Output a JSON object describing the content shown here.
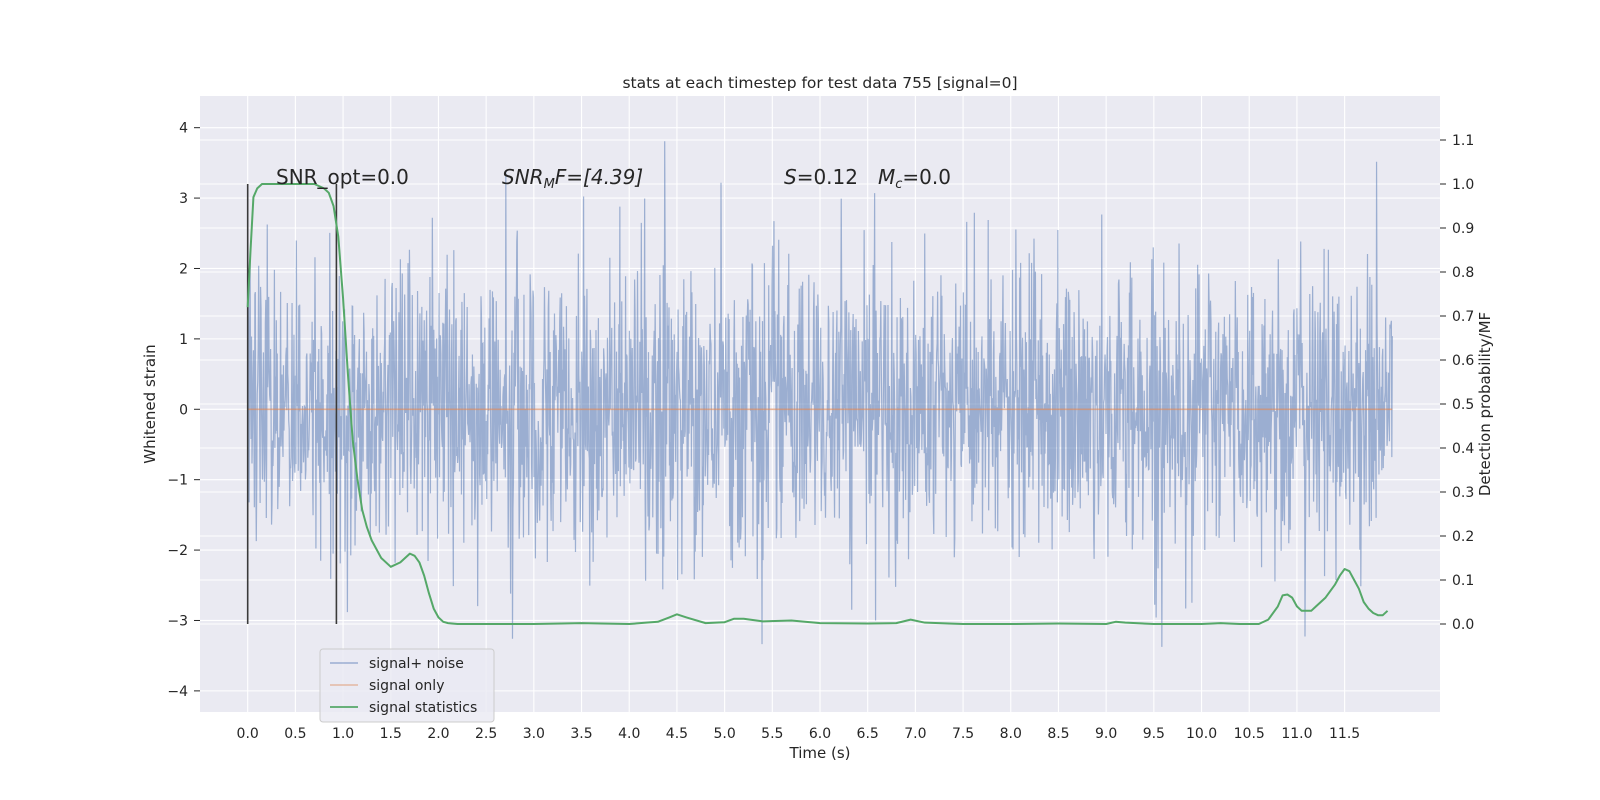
{
  "chart_data": {
    "type": "line",
    "title": "stats at each timestep for test data 755 [signal=0]",
    "xlabel": "Time (s)",
    "ylabel_left": "Whitened strain",
    "ylabel_right": "Detection probability/MF",
    "xlim": [
      -0.5,
      12.5
    ],
    "ylim_left": [
      -4.3,
      4.45
    ],
    "ylim_right": [
      -0.2,
      1.2
    ],
    "xticks": [
      "0.0",
      "0.5",
      "1.0",
      "1.5",
      "2.0",
      "2.5",
      "3.0",
      "3.5",
      "4.0",
      "4.5",
      "5.0",
      "5.5",
      "6.0",
      "6.5",
      "7.0",
      "7.5",
      "8.0",
      "8.5",
      "9.0",
      "9.5",
      "10.0",
      "10.5",
      "11.0",
      "11.5"
    ],
    "yticks_left": [
      "4",
      "3",
      "2",
      "1",
      "0",
      "−1",
      "−2",
      "−3",
      "−4"
    ],
    "yticks_right": [
      "1.1",
      "1.0",
      "0.9",
      "0.8",
      "0.7",
      "0.6",
      "0.5",
      "0.4",
      "0.3",
      "0.2",
      "0.1",
      "0.0"
    ],
    "grid": true,
    "legend_position": "lower-left",
    "annotations": {
      "snr_opt": "SNR_opt=0.0",
      "snr_mf_math": "SNR",
      "snr_mf_sub": "M",
      "snr_mf_tail": "F=[4.39]",
      "s_math": "S",
      "s_tail": "=0.12",
      "mc_math": "M",
      "mc_sub": "c",
      "mc_tail": "=0.0"
    },
    "vertical_markers_x": [
      0.0,
      0.93
    ],
    "series": [
      {
        "name": "signal+ noise",
        "axis": "left",
        "color": "#4c72b0",
        "description_stats": {
          "t_start": 0.0,
          "t_end": 12.0,
          "approx_range": [
            -3.9,
            4.1
          ]
        }
      },
      {
        "name": "signal only",
        "axis": "left",
        "color": "#dd8452",
        "x": [
          0.0,
          12.0
        ],
        "y": [
          0.0,
          0.0
        ]
      },
      {
        "name": "signal statistics",
        "axis": "right",
        "color": "#55a868",
        "x": [
          0.0,
          0.03,
          0.06,
          0.1,
          0.15,
          0.2,
          0.3,
          0.4,
          0.5,
          0.6,
          0.7,
          0.8,
          0.85,
          0.9,
          0.95,
          1.0,
          1.05,
          1.1,
          1.15,
          1.2,
          1.25,
          1.3,
          1.4,
          1.5,
          1.6,
          1.7,
          1.75,
          1.8,
          1.85,
          1.9,
          1.95,
          2.0,
          2.05,
          2.1,
          2.2,
          2.5,
          3.0,
          3.5,
          4.0,
          4.3,
          4.42,
          4.5,
          4.6,
          4.8,
          5.0,
          5.1,
          5.2,
          5.4,
          5.7,
          6.0,
          6.5,
          6.8,
          6.95,
          7.1,
          7.5,
          8.0,
          8.5,
          9.0,
          9.1,
          9.2,
          9.5,
          10.0,
          10.2,
          10.4,
          10.6,
          10.7,
          10.8,
          10.85,
          10.9,
          10.95,
          11.0,
          11.05,
          11.1,
          11.15,
          11.2,
          11.3,
          11.4,
          11.45,
          11.5,
          11.55,
          11.6,
          11.65,
          11.7,
          11.75,
          11.8,
          11.85,
          11.9,
          11.95
        ],
        "y": [
          0.72,
          0.85,
          0.97,
          0.99,
          1.0,
          1.0,
          1.0,
          1.0,
          1.0,
          1.0,
          1.0,
          0.99,
          0.98,
          0.95,
          0.88,
          0.74,
          0.57,
          0.42,
          0.33,
          0.26,
          0.22,
          0.19,
          0.15,
          0.13,
          0.14,
          0.16,
          0.155,
          0.14,
          0.11,
          0.07,
          0.035,
          0.015,
          0.005,
          0.002,
          0.0,
          0.0,
          0.0,
          0.002,
          0.0,
          0.005,
          0.015,
          0.022,
          0.015,
          0.002,
          0.004,
          0.012,
          0.012,
          0.006,
          0.008,
          0.002,
          0.001,
          0.002,
          0.01,
          0.003,
          0.0,
          0.0,
          0.001,
          0.0,
          0.005,
          0.003,
          0.0,
          0.0,
          0.002,
          0.0,
          0.0,
          0.01,
          0.04,
          0.065,
          0.067,
          0.06,
          0.04,
          0.03,
          0.03,
          0.03,
          0.04,
          0.06,
          0.09,
          0.11,
          0.125,
          0.12,
          0.1,
          0.08,
          0.05,
          0.035,
          0.025,
          0.02,
          0.02,
          0.03
        ]
      }
    ]
  }
}
